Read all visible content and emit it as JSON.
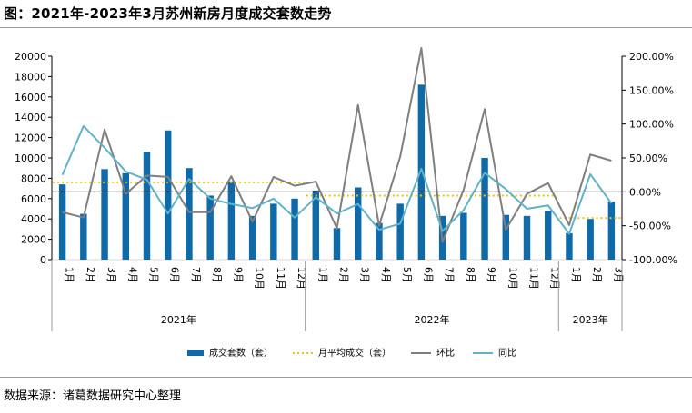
{
  "title": "图：2021年-2023年3月苏州新房月度成交套数走势",
  "source": "数据来源：诸葛数据研究中心整理",
  "colors": {
    "bar": "#0e6aa8",
    "avg": "#e8c21a",
    "mom": "#7f7f7f",
    "yoy": "#5fb3c9"
  },
  "chart_data": {
    "type": "bar",
    "categories": [
      "1月",
      "2月",
      "3月",
      "4月",
      "5月",
      "6月",
      "7月",
      "8月",
      "9月",
      "10月",
      "11月",
      "12月",
      "1月",
      "2月",
      "3月",
      "4月",
      "5月",
      "6月",
      "7月",
      "8月",
      "9月",
      "10月",
      "11月",
      "12月",
      "1月",
      "2月",
      "3月"
    ],
    "years": [
      {
        "label": "2021年",
        "count": 12
      },
      {
        "label": "2022年",
        "count": 12
      },
      {
        "label": "2023年",
        "count": 3
      }
    ],
    "y_left": {
      "min": 0,
      "max": 20000,
      "step": 2000,
      "ticks": [
        "0",
        "2000",
        "4000",
        "6000",
        "8000",
        "10000",
        "12000",
        "14000",
        "16000",
        "18000",
        "20000"
      ]
    },
    "y_right": {
      "min": -100,
      "max": 200,
      "step": 50,
      "ticks": [
        "-100.00%",
        "-50.00%",
        "0.00%",
        "50.00%",
        "100.00%",
        "150.00%",
        "200.00%"
      ]
    },
    "series": [
      {
        "name": "成交套数（套）",
        "kind": "bar",
        "axis": "left",
        "values": [
          7400,
          4500,
          8900,
          8500,
          10600,
          12700,
          9000,
          6300,
          7700,
          4300,
          5500,
          6000,
          6800,
          3100,
          7100,
          3600,
          5500,
          17200,
          4300,
          4600,
          10000,
          4400,
          4300,
          4800,
          2600,
          4000,
          5700
        ]
      },
      {
        "name": "月平均成交（套）",
        "kind": "avg",
        "axis": "left",
        "segments": [
          {
            "from": 0,
            "to": 11,
            "value": 7600
          },
          {
            "from": 12,
            "to": 23,
            "value": 6300
          },
          {
            "from": 24,
            "to": 26,
            "value": 4100
          }
        ]
      },
      {
        "name": "环比",
        "kind": "line",
        "axis": "right",
        "values": [
          -30,
          -38,
          92,
          -3,
          24,
          22,
          -30,
          -30,
          23,
          -44,
          22,
          9,
          15,
          -54,
          128,
          -50,
          52,
          212,
          -74,
          3,
          122,
          -56,
          -3,
          13,
          -49,
          55,
          46
        ]
      },
      {
        "name": "同比",
        "kind": "line",
        "axis": "right",
        "values": [
          25,
          97,
          65,
          30,
          18,
          -32,
          19,
          -10,
          -18,
          -24,
          -10,
          -38,
          -8,
          -32,
          -18,
          -56,
          -47,
          34,
          -58,
          -27,
          28,
          4,
          -25,
          -20,
          -62,
          26,
          -17
        ]
      }
    ]
  }
}
